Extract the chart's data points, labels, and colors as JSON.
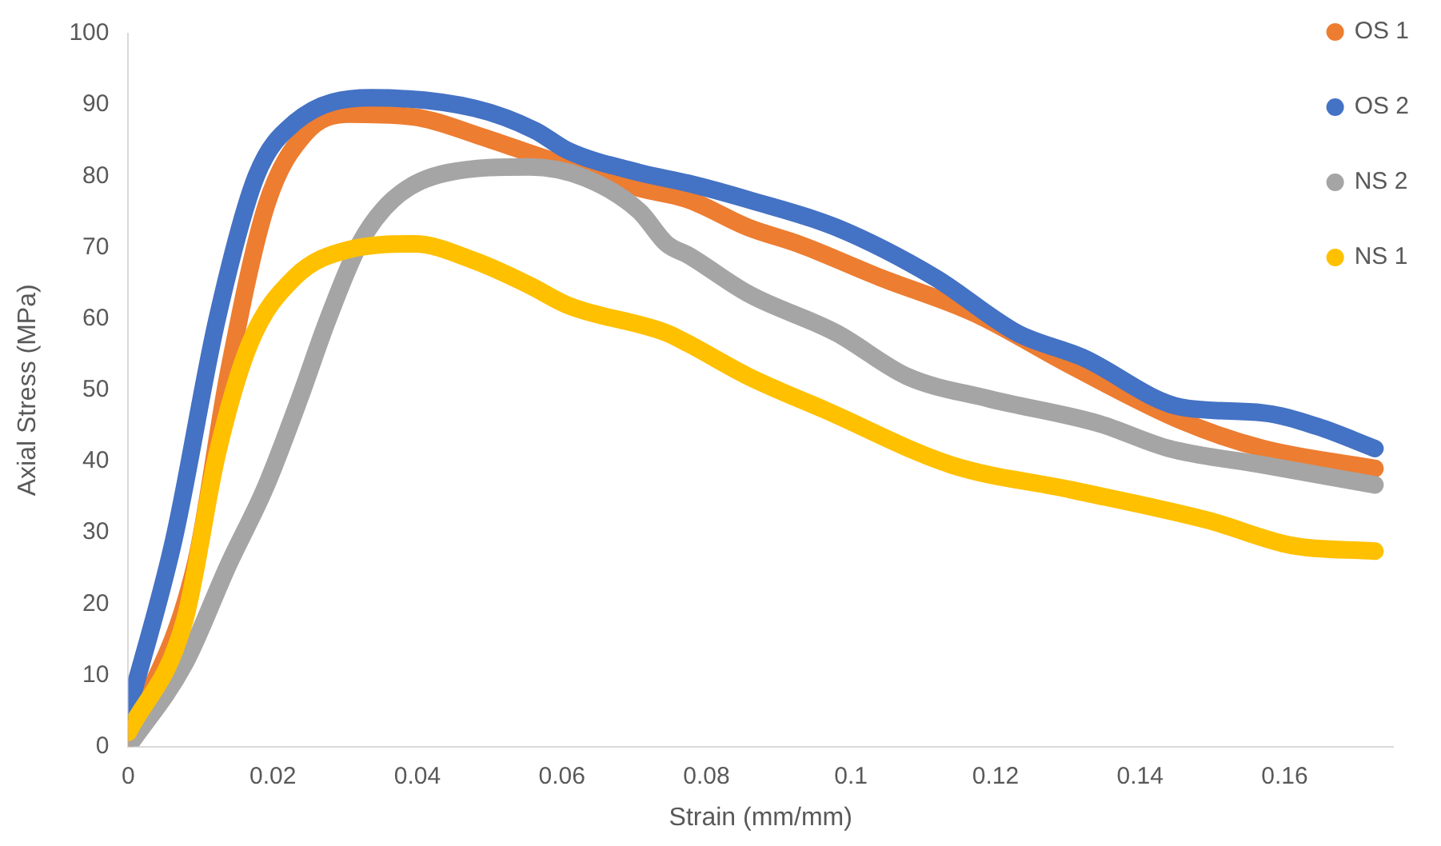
{
  "chart_data": {
    "type": "line",
    "xlabel": "Strain (mm/mm)",
    "ylabel": "Axial Stress (MPa)",
    "xlim": [
      0,
      0.175
    ],
    "xticks": [
      0,
      0.02,
      0.04,
      0.06,
      0.08,
      0.1,
      0.12,
      0.14,
      0.16
    ],
    "ylim": [
      0,
      100
    ],
    "yticks": [
      0,
      10,
      20,
      30,
      40,
      50,
      60,
      70,
      80,
      90,
      100
    ],
    "grid": false,
    "legend": "top right",
    "series": [
      {
        "name": "OS 1",
        "color": "#ed7d31",
        "x": [
          0,
          0.0093,
          0.0139,
          0.0191,
          0.0245,
          0.0305,
          0.0396,
          0.0487,
          0.0577,
          0.0707,
          0.0775,
          0.0858,
          0.0927,
          0.104,
          0.117,
          0.1305,
          0.1457,
          0.157,
          0.1725
        ],
        "values": [
          1,
          25.6,
          52.6,
          75.9,
          86,
          88.7,
          88.3,
          85.6,
          82.5,
          78.3,
          76.7,
          72.8,
          70.5,
          65.8,
          60.8,
          53.4,
          45.7,
          41.8,
          39
        ]
      },
      {
        "name": "OS 2",
        "color": "#4472c4",
        "x": [
          0,
          0.0063,
          0.0123,
          0.0177,
          0.023,
          0.0336,
          0.048,
          0.0563,
          0.0608,
          0.0707,
          0.0775,
          0.0858,
          0.098,
          0.1116,
          0.123,
          0.132,
          0.1457,
          0.157,
          0.1645,
          0.1725
        ],
        "values": [
          5,
          29,
          60,
          80,
          87.5,
          91,
          89.5,
          86.4,
          83.6,
          80.5,
          79,
          76.7,
          72.8,
          65.8,
          58,
          54.6,
          47.6,
          46.8,
          44.9,
          41.8
        ]
      },
      {
        "name": "NS 2",
        "color": "#a5a5a5",
        "x": [
          0,
          0.0078,
          0.0139,
          0.019,
          0.0237,
          0.0275,
          0.032,
          0.0366,
          0.0442,
          0.0555,
          0.0631,
          0.0707,
          0.0745,
          0.0775,
          0.0858,
          0.098,
          0.1078,
          0.119,
          0.1343,
          0.144,
          0.157,
          0.1725
        ],
        "values": [
          0,
          11.6,
          25.6,
          36.4,
          48.8,
          59.6,
          70.5,
          76.7,
          80.5,
          81.3,
          79.8,
          75.1,
          70.5,
          68.9,
          63.5,
          58,
          51.9,
          48.8,
          45.3,
          41.8,
          39.5,
          36.7
        ]
      },
      {
        "name": "NS 1",
        "color": "#ffc000",
        "x": [
          0,
          0.0078,
          0.0123,
          0.0168,
          0.023,
          0.0305,
          0.0396,
          0.048,
          0.0555,
          0.0608,
          0.0745,
          0.0775,
          0.0858,
          0.0964,
          0.1139,
          0.1305,
          0.1495,
          0.161,
          0.1725
        ],
        "values": [
          2,
          17.7,
          41,
          56.5,
          65.8,
          69.7,
          70.5,
          68.1,
          64.7,
          61.9,
          58,
          56.5,
          51.9,
          47.2,
          39.5,
          36,
          31.7,
          28.2,
          27.4
        ]
      }
    ]
  }
}
